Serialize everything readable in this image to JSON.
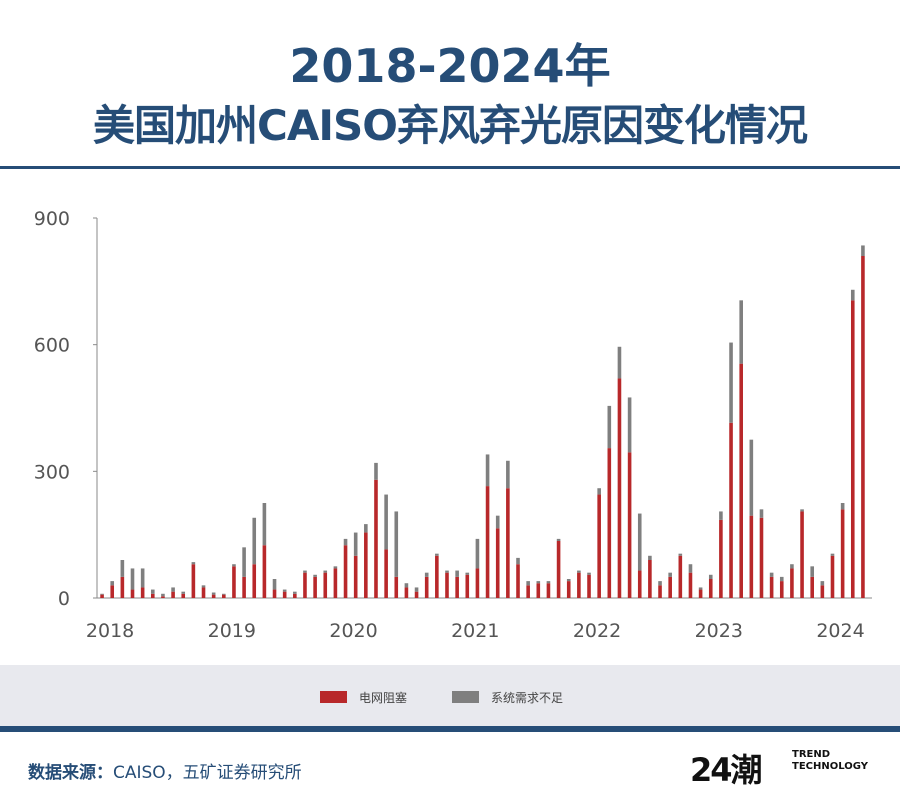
{
  "header": {
    "title_line1": "2018-2024年",
    "title_line2": "美国加州CAISO弃风弃光原因变化情况"
  },
  "footer": {
    "source_label": "数据来源：",
    "source_text": "CAISO，五矿证券研究所",
    "logo_mark": "24潮",
    "logo_line1": "TREND",
    "logo_line2": "TECHNOLOGY"
  },
  "colors": {
    "grid_congestion": "#b8282a",
    "system_demand": "#7f7f7f",
    "title": "#264d77"
  },
  "chart_data": {
    "type": "bar",
    "stacked": true,
    "title": "",
    "xlabel": "",
    "ylabel": "",
    "ylim": [
      0,
      900
    ],
    "yticks": [
      0,
      300,
      600,
      900
    ],
    "x_tick_labels": [
      "2018",
      "2019",
      "2020",
      "2021",
      "2022",
      "2023",
      "2024"
    ],
    "legend_position": "bottom",
    "grid": false,
    "categories": [
      "2018-01",
      "2018-02",
      "2018-03",
      "2018-04",
      "2018-05",
      "2018-06",
      "2018-07",
      "2018-08",
      "2018-09",
      "2018-10",
      "2018-11",
      "2018-12",
      "2019-01",
      "2019-02",
      "2019-03",
      "2019-04",
      "2019-05",
      "2019-06",
      "2019-07",
      "2019-08",
      "2019-09",
      "2019-10",
      "2019-11",
      "2019-12",
      "2020-01",
      "2020-02",
      "2020-03",
      "2020-04",
      "2020-05",
      "2020-06",
      "2020-07",
      "2020-08",
      "2020-09",
      "2020-10",
      "2020-11",
      "2020-12",
      "2021-01",
      "2021-02",
      "2021-03",
      "2021-04",
      "2021-05",
      "2021-06",
      "2021-07",
      "2021-08",
      "2021-09",
      "2021-10",
      "2021-11",
      "2021-12",
      "2022-01",
      "2022-02",
      "2022-03",
      "2022-04",
      "2022-05",
      "2022-06",
      "2022-07",
      "2022-08",
      "2022-09",
      "2022-10",
      "2022-11",
      "2022-12",
      "2023-01",
      "2023-02",
      "2023-03",
      "2023-04",
      "2023-05",
      "2023-06",
      "2023-07",
      "2023-08",
      "2023-09",
      "2023-10",
      "2023-11",
      "2023-12",
      "2024-01",
      "2024-02",
      "2024-03",
      "2024-04"
    ],
    "series": [
      {
        "name": "电网阻塞",
        "values": [
          8,
          30,
          50,
          20,
          25,
          10,
          4,
          15,
          10,
          80,
          25,
          8,
          8,
          75,
          50,
          80,
          125,
          20,
          15,
          10,
          60,
          50,
          60,
          70,
          125,
          100,
          155,
          280,
          115,
          50,
          25,
          15,
          50,
          100,
          60,
          50,
          55,
          70,
          265,
          165,
          260,
          80,
          30,
          35,
          35,
          135,
          40,
          60,
          55,
          245,
          355,
          520,
          345,
          65,
          90,
          30,
          50,
          100,
          60,
          20,
          45,
          185,
          415,
          555,
          195,
          190,
          50,
          40,
          70,
          205,
          50,
          30,
          100,
          210,
          705,
          810
        ]
      },
      {
        "name": "系统需求不足",
        "values": [
          2,
          10,
          40,
          50,
          45,
          10,
          6,
          10,
          5,
          5,
          5,
          5,
          2,
          5,
          70,
          110,
          100,
          25,
          5,
          5,
          5,
          5,
          5,
          5,
          15,
          55,
          20,
          40,
          130,
          155,
          10,
          10,
          10,
          5,
          5,
          15,
          5,
          70,
          75,
          30,
          65,
          15,
          10,
          5,
          5,
          5,
          5,
          5,
          5,
          15,
          100,
          75,
          130,
          135,
          10,
          10,
          10,
          5,
          20,
          5,
          10,
          20,
          190,
          150,
          180,
          20,
          10,
          10,
          10,
          5,
          25,
          10,
          5,
          15,
          25,
          25
        ]
      }
    ]
  }
}
